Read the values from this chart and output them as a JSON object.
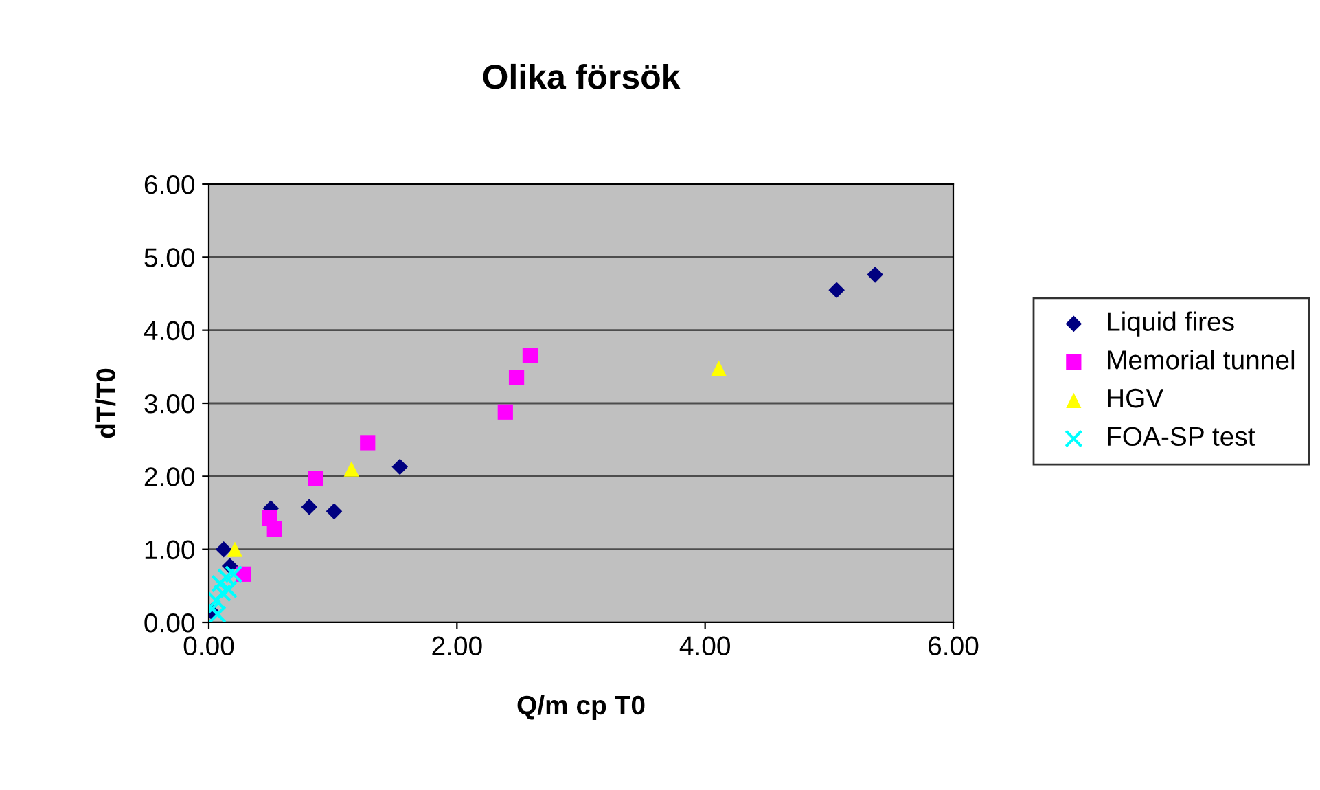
{
  "chart_data": {
    "type": "scatter",
    "title": "Olika försök",
    "xlabel": "Q/m cp T0",
    "ylabel": "dT/T0",
    "xlim": [
      0,
      6
    ],
    "ylim": [
      0,
      6
    ],
    "xticks": [
      {
        "value": 0,
        "label": "0.00"
      },
      {
        "value": 2,
        "label": "2.00"
      },
      {
        "value": 4,
        "label": "4.00"
      },
      {
        "value": 6,
        "label": "6.00"
      }
    ],
    "yticks": [
      {
        "value": 0,
        "label": "0.00"
      },
      {
        "value": 1,
        "label": "1.00"
      },
      {
        "value": 2,
        "label": "2.00"
      },
      {
        "value": 3,
        "label": "3.00"
      },
      {
        "value": 4,
        "label": "4.00"
      },
      {
        "value": 5,
        "label": "5.00"
      },
      {
        "value": 6,
        "label": "6.00"
      }
    ],
    "grid": "y",
    "legend": "right",
    "series": [
      {
        "name": "Liquid fires",
        "color": "#000080",
        "marker": "diamond",
        "x": [
          0.02,
          0.12,
          0.17,
          0.5,
          0.81,
          1.01,
          1.54,
          5.06,
          5.37
        ],
        "values": [
          0.15,
          1.0,
          0.77,
          1.56,
          1.58,
          1.52,
          2.13,
          4.55,
          4.76
        ]
      },
      {
        "name": "Memorial tunnel",
        "color": "#ff00ff",
        "marker": "square",
        "x": [
          0.28,
          0.49,
          0.53,
          0.86,
          1.28,
          2.39,
          2.48,
          2.59
        ],
        "values": [
          0.66,
          1.43,
          1.28,
          1.97,
          2.46,
          2.88,
          3.35,
          3.65
        ]
      },
      {
        "name": "HGV",
        "color": "#ffff00",
        "marker": "triangle",
        "x": [
          0.21,
          1.15,
          4.11
        ],
        "values": [
          1.0,
          2.1,
          3.48
        ]
      },
      {
        "name": "FOA-SP test",
        "color": "#00ffff",
        "marker": "cross",
        "x": [
          0.03,
          0.06,
          0.07,
          0.09,
          0.11,
          0.14,
          0.2,
          0.16
        ],
        "values": [
          0.19,
          0.3,
          0.11,
          0.53,
          0.4,
          0.62,
          0.66,
          0.45
        ]
      }
    ]
  }
}
